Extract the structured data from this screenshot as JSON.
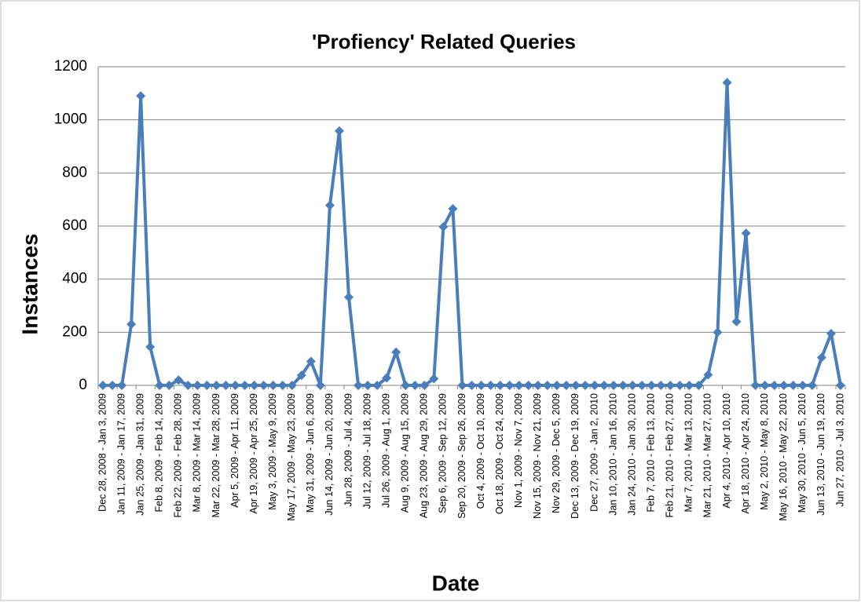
{
  "chart_data": {
    "type": "line",
    "title": "'Profiency' Related Queries",
    "x_label": "Date",
    "y_label": "Instances",
    "categories": [
      "Dec 28, 2008 - Jan 3, 2009",
      null,
      "Jan 11, 2009 - Jan 17, 2009",
      null,
      "Jan 25, 2009 - Jan 31, 2009",
      null,
      "Feb 8, 2009 - Feb 14, 2009",
      null,
      "Feb 22, 2009 - Feb 28, 2009",
      null,
      "Mar 8, 2009 - Mar 14, 2009",
      null,
      "Mar 22, 2009 - Mar 28, 2009",
      null,
      "Apr 5, 2009 - Apr 11, 2009",
      null,
      "Apr 19, 2009 - Apr 25, 2009",
      null,
      "May 3, 2009 - May 9, 2009",
      null,
      "May 17, 2009 - May 23, 2009",
      null,
      "May 31, 2009 - Jun 6, 2009",
      null,
      "Jun 14, 2009 - Jun 20, 2009",
      null,
      "Jun 28, 2009 - Jul 4, 2009",
      null,
      "Jul 12, 2009 - Jul 18, 2009",
      null,
      "Jul 26, 2009 - Aug 1, 2009",
      null,
      "Aug 9, 2009 - Aug 15, 2009",
      null,
      "Aug 23, 2009 - Aug 29, 2009",
      null,
      "Sep 6, 2009 - Sep 12, 2009",
      null,
      "Sep 20, 2009 - Sep 26, 2009",
      null,
      "Oct 4, 2009 - Oct 10, 2009",
      null,
      "Oct 18, 2009 - Oct 24, 2009",
      null,
      "Nov 1, 2009 - Nov 7, 2009",
      null,
      "Nov 15, 2009 - Nov 21, 2009",
      null,
      "Nov 29, 2009 - Dec 5, 2009",
      null,
      "Dec 13, 2009 - Dec 19, 2009",
      null,
      "Dec 27, 2009 - Jan 2, 2010",
      null,
      "Jan 10, 2010 - Jan 16, 2010",
      null,
      "Jan 24, 2010 - Jan 30, 2010",
      null,
      "Feb 7, 2010 - Feb 13, 2010",
      null,
      "Feb 21, 2010 - Feb 27, 2010",
      null,
      "Mar 7, 2010 - Mar 13, 2010",
      null,
      "Mar 21, 2010 - Mar 27, 2010",
      null,
      "Apr 4, 2010 - Apr 10, 2010",
      null,
      "Apr 18, 2010 - Apr 24, 2010",
      null,
      "May 2, 2010 - May 8, 2010",
      null,
      "May 16, 2010 - May 22, 2010",
      null,
      "May 30, 2010 - Jun 5, 2010",
      null,
      "Jun 13, 2010 - Jun 19, 2010",
      null,
      "Jun 27, 2010 - Jul 3, 2010"
    ],
    "values": [
      0,
      0,
      0,
      230,
      1090,
      145,
      0,
      0,
      20,
      0,
      0,
      0,
      0,
      0,
      0,
      0,
      0,
      0,
      0,
      0,
      0,
      38,
      90,
      0,
      678,
      958,
      332,
      0,
      0,
      0,
      28,
      125,
      0,
      0,
      0,
      25,
      597,
      665,
      0,
      0,
      0,
      0,
      0,
      0,
      0,
      0,
      0,
      0,
      0,
      0,
      0,
      0,
      0,
      0,
      0,
      0,
      0,
      0,
      0,
      0,
      0,
      0,
      0,
      0,
      40,
      200,
      1140,
      240,
      573,
      0,
      0,
      0,
      0,
      0,
      0,
      0,
      105,
      195,
      0
    ],
    "color": "#4a7ebb",
    "ylim": [
      0,
      1200
    ],
    "yticks": [
      0,
      200,
      400,
      600,
      800,
      1000,
      1200
    ],
    "grid": true
  }
}
